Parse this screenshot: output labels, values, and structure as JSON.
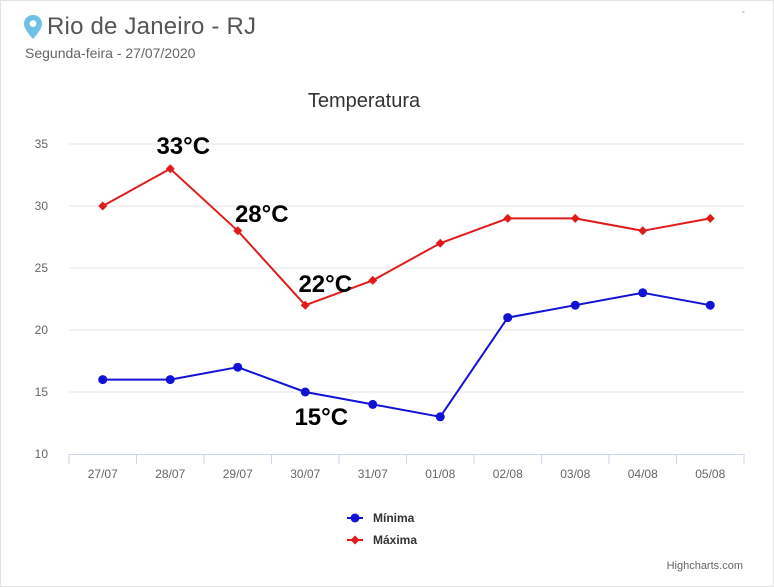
{
  "header": {
    "city": "Rio de Janeiro - RJ",
    "date": "Segunda-feira - 27/07/2020",
    "corner_mark": "-"
  },
  "credits": "Highcharts.com",
  "colors": {
    "minima": "#1212d6",
    "maxima": "#e01b1b",
    "grid": "#e6e6e6",
    "pin": "#6ec1e4"
  },
  "icons": {
    "location": "map-pin-icon"
  },
  "chart_data": {
    "type": "line",
    "title": "Temperatura",
    "categories": [
      "27/07",
      "28/07",
      "29/07",
      "30/07",
      "31/07",
      "01/08",
      "02/08",
      "03/08",
      "04/08",
      "05/08"
    ],
    "ylim": [
      10,
      35
    ],
    "yticks": [
      10,
      15,
      20,
      25,
      30,
      35
    ],
    "grid": true,
    "legend_position": "bottom-center",
    "series": [
      {
        "name": "Mínima",
        "marker": "circle",
        "color": "#1212d6",
        "values": [
          16,
          16,
          17,
          15,
          14,
          13,
          21,
          22,
          23,
          22
        ]
      },
      {
        "name": "Máxima",
        "marker": "diamond",
        "color": "#e01b1b",
        "values": [
          30,
          33,
          28,
          22,
          24,
          27,
          29,
          29,
          28,
          29
        ]
      }
    ],
    "annotations": [
      {
        "text": "33°C",
        "series": 1,
        "index": 1
      },
      {
        "text": "28°C",
        "series": 1,
        "index": 2
      },
      {
        "text": "22°C",
        "series": 1,
        "index": 3
      },
      {
        "text": "15°C",
        "series": 0,
        "index": 3
      }
    ]
  }
}
